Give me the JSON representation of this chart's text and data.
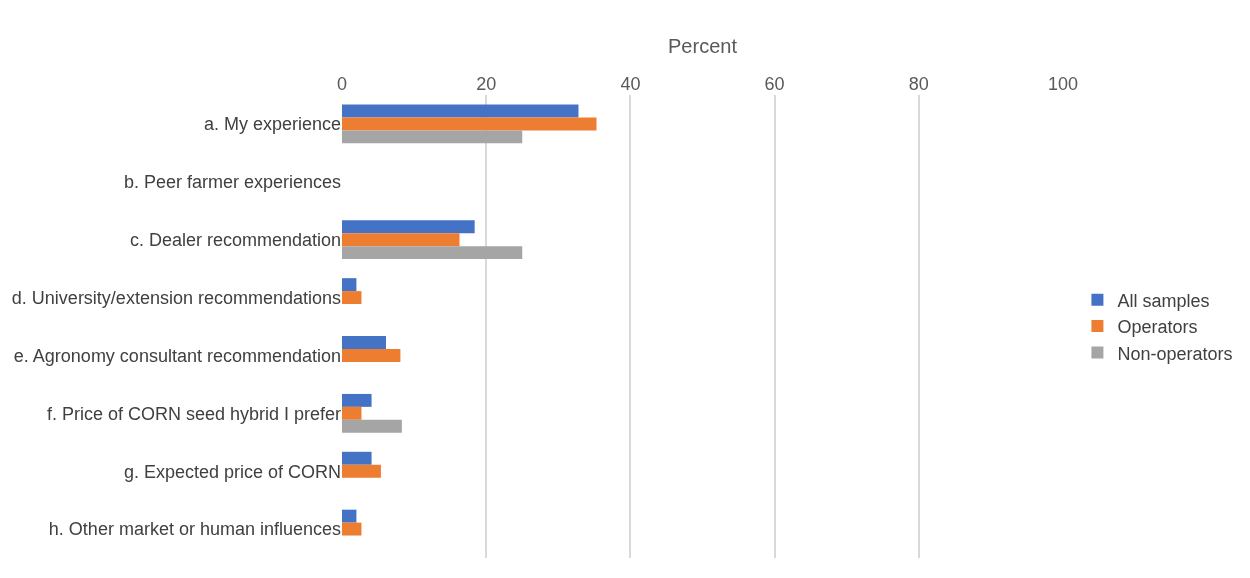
{
  "chart_data": {
    "type": "bar",
    "orientation": "horizontal",
    "xlabel": "Percent",
    "categories": [
      "a. My experience",
      "b. Peer farmer experiences",
      "c. Dealer recommendation",
      "d. University/extension recommendations",
      "e. Agronomy consultant recommendation",
      "f. Price of CORN seed hybrid I prefer",
      "g. Expected price of CORN",
      "h. Other market or human influences"
    ],
    "series": [
      {
        "name": "All samples",
        "color": "#4472c4",
        "values": [
          32.8,
          null,
          18.4,
          2.0,
          6.1,
          4.1,
          4.1,
          2.0
        ]
      },
      {
        "name": "Operators",
        "color": "#ed7d31",
        "values": [
          35.3,
          null,
          16.3,
          2.7,
          8.1,
          2.7,
          5.4,
          2.7
        ]
      },
      {
        "name": "Non-operators",
        "color": "#a5a5a5",
        "values": [
          25.0,
          null,
          25.0,
          null,
          null,
          8.3,
          null,
          null
        ]
      }
    ],
    "xlim": [
      0,
      100
    ],
    "xticks": [
      0,
      20,
      40,
      60,
      80,
      100
    ],
    "grid": "x",
    "legend": "right"
  }
}
